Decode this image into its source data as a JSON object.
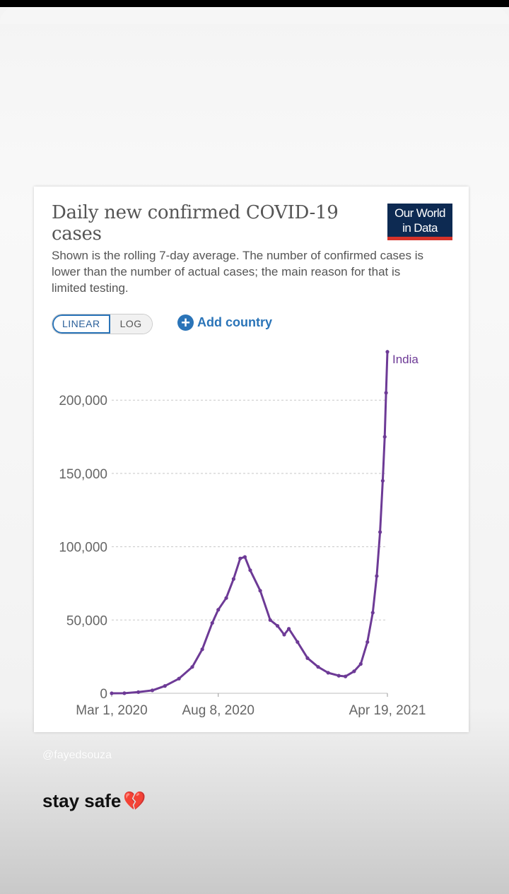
{
  "card": {
    "title": "Daily new confirmed COVID-19 cases",
    "subtitle": "Shown is the rolling 7-day average. The number of confirmed cases is lower than the number of actual cases; the main reason for that is limited testing.",
    "logo_line1": "Our World",
    "logo_line2": "in Data",
    "scale_linear": "LINEAR",
    "scale_log": "LOG",
    "add_country": "Add country",
    "add_icon": "plus-circle-icon"
  },
  "chart_data": {
    "type": "line",
    "x_start": "Mar 1, 2020",
    "x_end": "Apr 19, 2021",
    "xticks": [
      "Mar 1, 2020",
      "Aug 8, 2020",
      "Apr 19, 2021"
    ],
    "yticks": [
      "0",
      "50,000",
      "100,000",
      "150,000",
      "200,000"
    ],
    "ylim": [
      0,
      230000
    ],
    "grid": "horizontal dashed",
    "series": [
      {
        "name": "India",
        "color": "#6d3a96",
        "points": [
          [
            "Mar 1, 2020",
            0
          ],
          [
            "Mar 20, 2020",
            50
          ],
          [
            "Apr 10, 2020",
            800
          ],
          [
            "May 1, 2020",
            2000
          ],
          [
            "May 20, 2020",
            5000
          ],
          [
            "Jun 10, 2020",
            10000
          ],
          [
            "Jun 30, 2020",
            18000
          ],
          [
            "Jul 15, 2020",
            30000
          ],
          [
            "Jul 30, 2020",
            48000
          ],
          [
            "Aug 8, 2020",
            57000
          ],
          [
            "Aug 20, 2020",
            65000
          ],
          [
            "Aug 31, 2020",
            78000
          ],
          [
            "Sep 10, 2020",
            92000
          ],
          [
            "Sep 17, 2020",
            93000
          ],
          [
            "Sep 25, 2020",
            84000
          ],
          [
            "Oct 10, 2020",
            70000
          ],
          [
            "Oct 25, 2020",
            50000
          ],
          [
            "Nov 5, 2020",
            46000
          ],
          [
            "Nov 15, 2020",
            40000
          ],
          [
            "Nov 22, 2020",
            44000
          ],
          [
            "Dec 5, 2020",
            35000
          ],
          [
            "Dec 20, 2020",
            24000
          ],
          [
            "Jan 5, 2021",
            18000
          ],
          [
            "Jan 20, 2021",
            14000
          ],
          [
            "Feb 5, 2021",
            12000
          ],
          [
            "Feb 15, 2021",
            11500
          ],
          [
            "Feb 28, 2021",
            15000
          ],
          [
            "Mar 10, 2021",
            20000
          ],
          [
            "Mar 20, 2021",
            35000
          ],
          [
            "Mar 28, 2021",
            55000
          ],
          [
            "Apr 3, 2021",
            80000
          ],
          [
            "Apr 8, 2021",
            110000
          ],
          [
            "Apr 12, 2021",
            145000
          ],
          [
            "Apr 15, 2021",
            175000
          ],
          [
            "Apr 17, 2021",
            205000
          ],
          [
            "Apr 19, 2021",
            233000
          ]
        ]
      }
    ]
  },
  "story": {
    "watermark": "@fayedsouza",
    "caption": "stay safe",
    "emoji": "💔"
  }
}
